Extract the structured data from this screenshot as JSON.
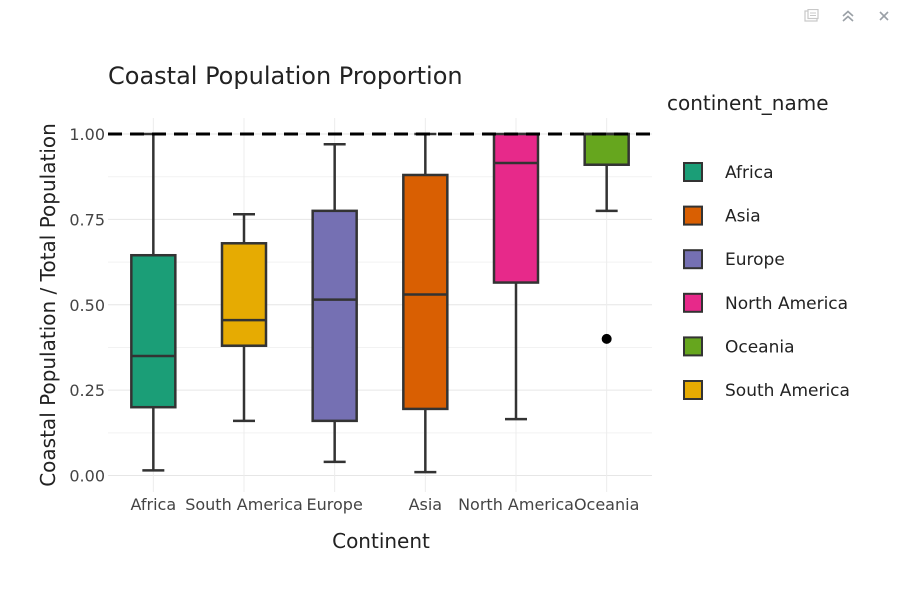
{
  "modebar": {
    "icons": [
      "download-plot-icon",
      "autoscale-icon",
      "close-icon"
    ]
  },
  "chart_data": {
    "type": "box",
    "title": "Coastal Population Proportion",
    "xlabel": "Continent",
    "ylabel": "Coastal Population / Total Population",
    "ylim": [
      0,
      1.05
    ],
    "yticks": [
      "0.00",
      "0.25",
      "0.50",
      "0.75",
      "1.00"
    ],
    "ytick_values": [
      0,
      0.25,
      0.5,
      0.75,
      1.0
    ],
    "grid": true,
    "reference_line": {
      "y": 1.0,
      "style": "dashed",
      "color": "#000000"
    },
    "categories": [
      "Africa",
      "South America",
      "Europe",
      "Asia",
      "North America",
      "Oceania"
    ],
    "legend": {
      "title": "continent_name",
      "position": "right",
      "entries": [
        "Africa",
        "Asia",
        "Europe",
        "North America",
        "Oceania",
        "South America"
      ]
    },
    "series": [
      {
        "name": "Africa",
        "color": "#1b9e77",
        "whisker_low": 0.015,
        "q1": 0.2,
        "median": 0.35,
        "q3": 0.645,
        "whisker_high": 1.0,
        "outliers": []
      },
      {
        "name": "South America",
        "color": "#e6ab02",
        "whisker_low": 0.16,
        "q1": 0.38,
        "median": 0.455,
        "q3": 0.68,
        "whisker_high": 0.765,
        "outliers": []
      },
      {
        "name": "Europe",
        "color": "#7570b3",
        "whisker_low": 0.04,
        "q1": 0.16,
        "median": 0.515,
        "q3": 0.775,
        "whisker_high": 0.97,
        "outliers": []
      },
      {
        "name": "Asia",
        "color": "#d95f02",
        "whisker_low": 0.01,
        "q1": 0.195,
        "median": 0.53,
        "q3": 0.88,
        "whisker_high": 1.0,
        "outliers": []
      },
      {
        "name": "North America",
        "color": "#e7298a",
        "whisker_low": 0.165,
        "q1": 0.565,
        "median": 0.915,
        "q3": 1.0,
        "whisker_high": 1.0,
        "outliers": []
      },
      {
        "name": "Oceania",
        "color": "#66a61e",
        "whisker_low": 0.775,
        "q1": 0.91,
        "median": 1.0,
        "q3": 1.0,
        "whisker_high": 1.0,
        "outliers": [
          0.4
        ]
      }
    ]
  }
}
